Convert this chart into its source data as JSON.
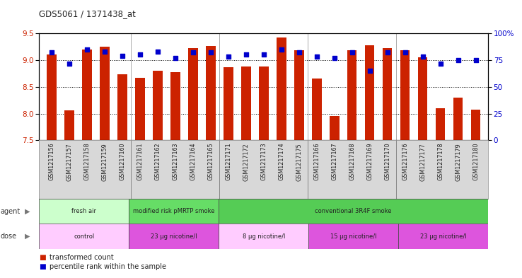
{
  "title": "GDS5061 / 1371438_at",
  "samples": [
    "GSM1217156",
    "GSM1217157",
    "GSM1217158",
    "GSM1217159",
    "GSM1217160",
    "GSM1217161",
    "GSM1217162",
    "GSM1217163",
    "GSM1217164",
    "GSM1217165",
    "GSM1217171",
    "GSM1217172",
    "GSM1217173",
    "GSM1217174",
    "GSM1217175",
    "GSM1217166",
    "GSM1217167",
    "GSM1217168",
    "GSM1217169",
    "GSM1217170",
    "GSM1217176",
    "GSM1217177",
    "GSM1217178",
    "GSM1217179",
    "GSM1217180"
  ],
  "bar_values": [
    9.1,
    8.06,
    9.2,
    9.25,
    8.74,
    8.67,
    8.8,
    8.78,
    9.22,
    9.27,
    8.87,
    8.88,
    8.88,
    9.42,
    9.18,
    8.65,
    7.95,
    9.18,
    9.28,
    9.22,
    9.18,
    9.05,
    8.1,
    8.3,
    8.07
  ],
  "percentile_values": [
    82,
    72,
    85,
    83,
    79,
    80,
    83,
    77,
    82,
    82,
    78,
    80,
    80,
    85,
    82,
    78,
    77,
    82,
    65,
    82,
    82,
    78,
    72,
    75,
    75
  ],
  "ylim_left": [
    7.5,
    9.5
  ],
  "ylim_right": [
    0,
    100
  ],
  "yticks_left": [
    7.5,
    8.0,
    8.5,
    9.0,
    9.5
  ],
  "yticks_right": [
    0,
    25,
    50,
    75,
    100
  ],
  "ytick_labels_right": [
    "0",
    "25",
    "50",
    "75",
    "100%"
  ],
  "bar_color": "#cc2200",
  "percentile_color": "#0000cc",
  "agent_groups": [
    {
      "label": "fresh air",
      "start": 0,
      "end": 5,
      "color": "#ccffcc"
    },
    {
      "label": "modified risk pMRTP smoke",
      "start": 5,
      "end": 10,
      "color": "#66dd66"
    },
    {
      "label": "conventional 3R4F smoke",
      "start": 10,
      "end": 25,
      "color": "#55cc55"
    }
  ],
  "dose_groups": [
    {
      "label": "control",
      "start": 0,
      "end": 5,
      "color": "#ffccff"
    },
    {
      "label": "23 μg nicotine/l",
      "start": 5,
      "end": 10,
      "color": "#dd55dd"
    },
    {
      "label": "8 μg nicotine/l",
      "start": 10,
      "end": 15,
      "color": "#ffccff"
    },
    {
      "label": "15 μg nicotine/l",
      "start": 15,
      "end": 20,
      "color": "#dd55dd"
    },
    {
      "label": "23 μg nicotine/l",
      "start": 20,
      "end": 25,
      "color": "#dd55dd"
    }
  ],
  "legend_items": [
    {
      "label": "transformed count",
      "color": "#cc2200"
    },
    {
      "label": "percentile rank within the sample",
      "color": "#0000cc"
    }
  ],
  "background_color": "#ffffff",
  "xtick_bg": "#d8d8d8",
  "grid_yticks": [
    8.0,
    8.5,
    9.0
  ]
}
